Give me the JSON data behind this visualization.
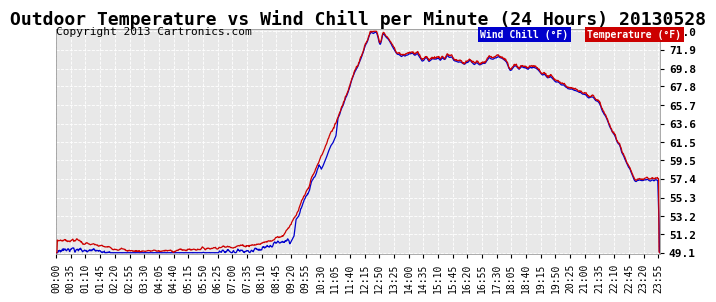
{
  "title": "Outdoor Temperature vs Wind Chill per Minute (24 Hours) 20130528",
  "copyright": "Copyright 2013 Cartronics.com",
  "legend_wind_chill": "Wind Chill (°F)",
  "legend_temperature": "Temperature (°F)",
  "wind_chill_color": "#0000cc",
  "temperature_color": "#cc0000",
  "legend_wind_chill_bg": "#0000cc",
  "legend_temperature_bg": "#cc0000",
  "yticks": [
    49.1,
    51.2,
    53.2,
    55.3,
    57.4,
    59.5,
    61.5,
    63.6,
    65.7,
    67.8,
    69.8,
    71.9,
    74.0
  ],
  "ymin": 49.1,
  "ymax": 74.0,
  "background_color": "#ffffff",
  "plot_bg_color": "#e8e8e8",
  "grid_color": "#ffffff",
  "title_fontsize": 13,
  "copyright_fontsize": 8,
  "tick_fontsize": 8
}
